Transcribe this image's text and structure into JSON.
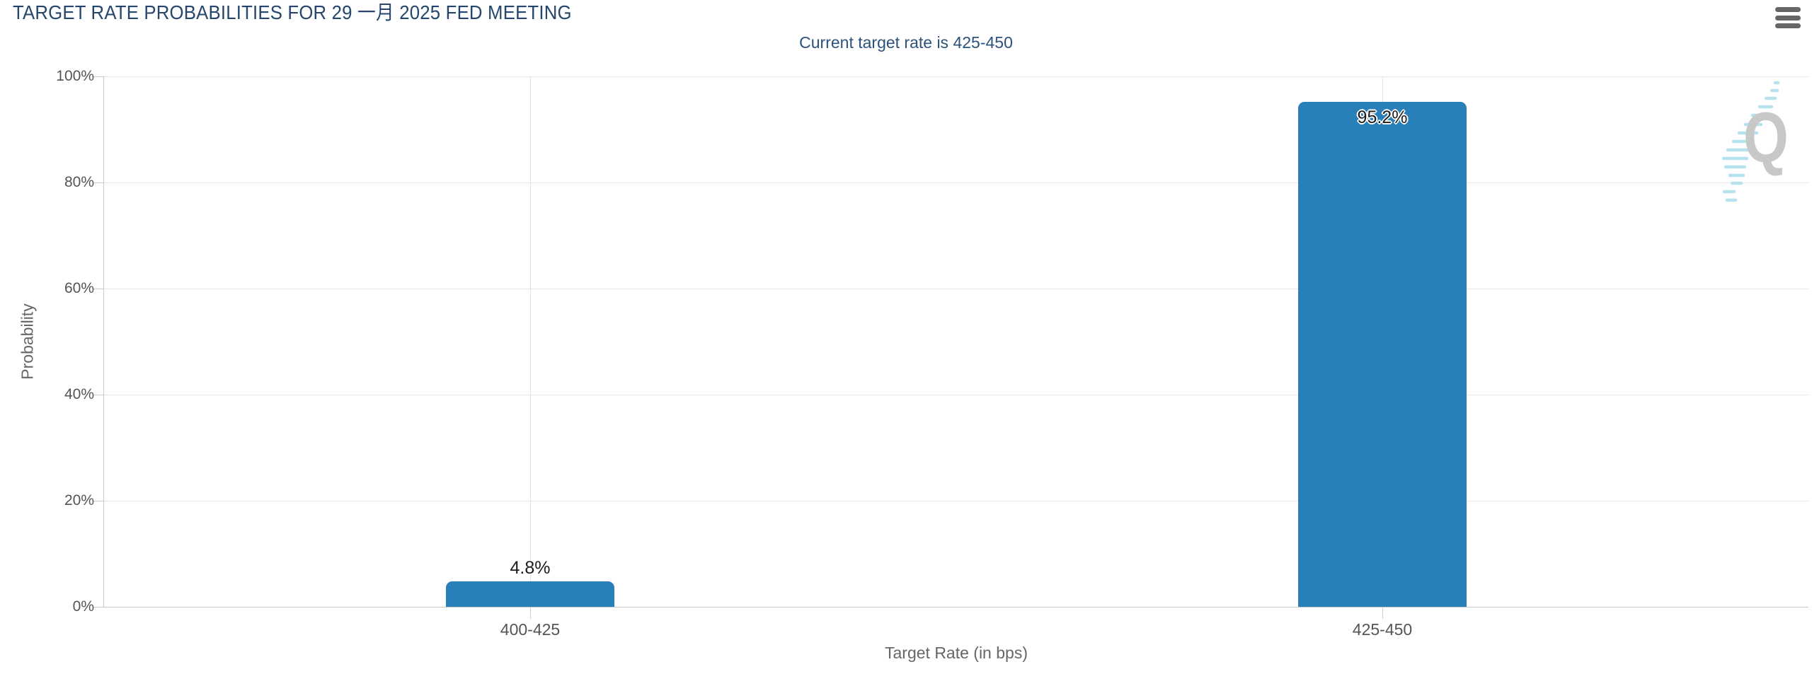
{
  "header": {
    "title": "TARGET RATE PROBABILITIES FOR 29 一月 2025 FED MEETING"
  },
  "menu": {
    "icon": "hamburger-menu-icon"
  },
  "chart_data": {
    "type": "bar",
    "title": "TARGET RATE PROBABILITIES FOR 29 一月 2025 FED MEETING",
    "subtitle": "Current target rate is 425-450",
    "xlabel": "Target Rate (in bps)",
    "ylabel": "Probability",
    "categories": [
      "400-425",
      "425-450"
    ],
    "values": [
      4.8,
      95.2
    ],
    "value_labels": [
      "4.8%",
      "95.2%"
    ],
    "ylim": [
      0,
      100
    ],
    "yticks": [
      {
        "value": 0,
        "label": "0%"
      },
      {
        "value": 20,
        "label": "20%"
      },
      {
        "value": 40,
        "label": "40%"
      },
      {
        "value": 60,
        "label": "60%"
      },
      {
        "value": 80,
        "label": "80%"
      },
      {
        "value": 100,
        "label": "100%"
      }
    ],
    "grid": true,
    "legend_position": "none",
    "bar_color": "#2980b9",
    "watermark_letter": "Q"
  },
  "colors": {
    "title_text": "#26466d",
    "subtitle_text": "#2b527b",
    "bar_fill": "#2980b9",
    "gridline": "#e6e6e6",
    "axis_line": "#c9c9c9",
    "tick_label": "#545454",
    "axis_title": "#666666",
    "menu_icon": "#666666",
    "watermark_q": "#c8c8c8",
    "watermark_lines": "#b7e3ef"
  }
}
